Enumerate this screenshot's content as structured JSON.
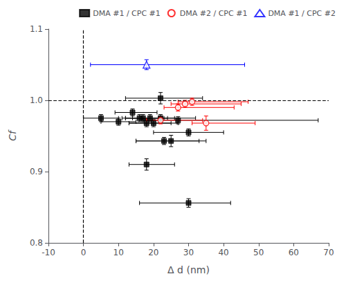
{
  "chart_data": {
    "type": "scatter",
    "x_label": "Δ d (nm)",
    "y_label": "Cf",
    "xlim": [
      -10,
      70
    ],
    "ylim": [
      0.8,
      1.1
    ],
    "xticks": [
      -10,
      0,
      10,
      20,
      30,
      40,
      50,
      60,
      70
    ],
    "yticks": [
      0.8,
      0.9,
      {
        "value": 1.0,
        "label": "1.0"
      },
      1.1
    ],
    "grid": false,
    "legend": "upper right",
    "reference_lines": [
      {
        "axis": "x",
        "value": 0,
        "color": "black",
        "line_style": "dashed"
      },
      {
        "axis": "y",
        "value": 1.0,
        "color": "black",
        "line_style": "dashed"
      }
    ],
    "series": [
      {
        "name": "DMA #1 / CPC #1",
        "color": "black",
        "marker": "square_filled",
        "x": [
          5,
          10,
          14,
          16,
          17,
          18,
          19,
          20,
          22,
          22,
          23,
          25,
          27,
          30,
          18,
          30
        ],
        "values": [
          0.975,
          0.97,
          0.983,
          0.975,
          0.975,
          0.968,
          0.975,
          0.968,
          1.003,
          0.975,
          0.943,
          0.943,
          0.972,
          0.955,
          0.91,
          0.856
        ],
        "xerr_lo": [
          5,
          5,
          5,
          5,
          5,
          5,
          7,
          7,
          10,
          8,
          8,
          10,
          10,
          10,
          5,
          14
        ],
        "xerr_hi": [
          5,
          5,
          7,
          7,
          7,
          7,
          7,
          7,
          12,
          10,
          10,
          10,
          40,
          10,
          8,
          12
        ],
        "yerr": [
          0.005,
          0.005,
          0.005,
          0.005,
          0.005,
          0.005,
          0.005,
          0.005,
          0.008,
          0.005,
          0.005,
          0.008,
          0.005,
          0.005,
          0.008,
          0.006
        ]
      },
      {
        "name": "DMA #2 / CPC #1",
        "color": "red",
        "marker": "circle_open",
        "x": [
          22,
          27,
          29,
          31,
          35
        ],
        "values": [
          0.972,
          0.99,
          0.995,
          0.998,
          0.968
        ],
        "xerr_lo": [
          4,
          4,
          4,
          4,
          4
        ],
        "xerr_hi": [
          12,
          16,
          16,
          16,
          14
        ],
        "yerr": [
          0.005,
          0.005,
          0.005,
          0.005,
          0.01
        ]
      },
      {
        "name": "DMA #1 / CPC #2",
        "color": "blue",
        "marker": "triangle_open",
        "x": [
          18
        ],
        "values": [
          1.05
        ],
        "xerr_lo": [
          16
        ],
        "xerr_hi": [
          28
        ],
        "yerr": [
          0.007
        ]
      }
    ]
  }
}
